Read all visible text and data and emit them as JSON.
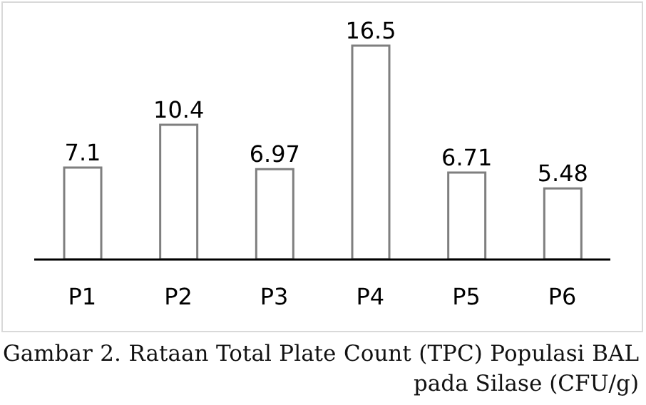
{
  "chart_data": {
    "type": "bar",
    "title": "Gambar 2. Rataan Total Plate Count (TPC) Populasi BAL pada Silase (CFU/g)",
    "categories": [
      "P1",
      "P2",
      "P3",
      "P4",
      "P5",
      "P6"
    ],
    "values": [
      7.1,
      10.4,
      6.97,
      16.5,
      6.71,
      5.48
    ],
    "color": "#ffffff",
    "data_labels": true,
    "grid": false,
    "legend": false
  }
}
